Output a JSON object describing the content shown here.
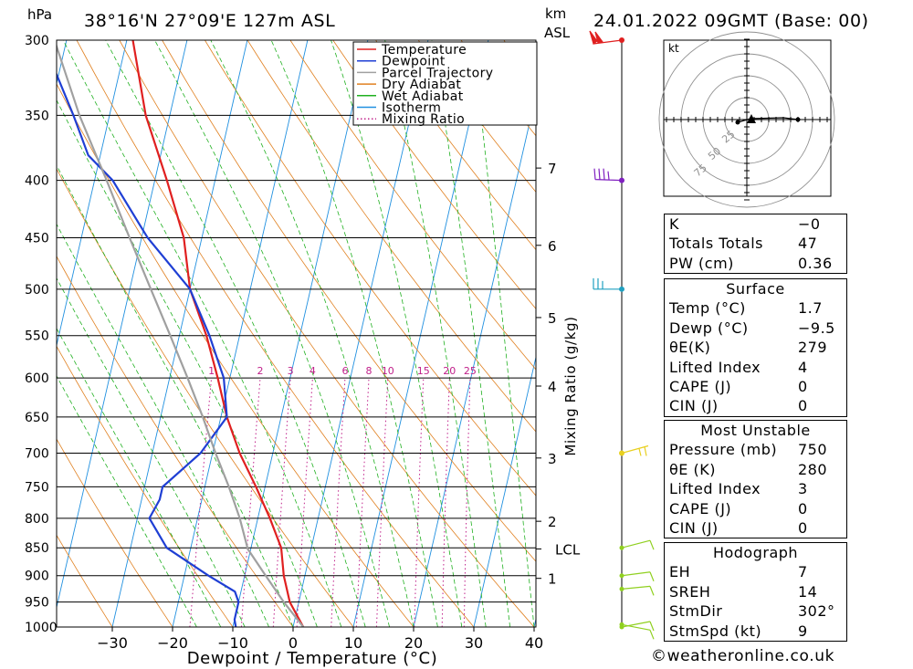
{
  "header": {
    "hpa_label": "hPa",
    "location": "38°16'N 27°09'E 127m ASL",
    "km_label": "km",
    "asl_label": "ASL",
    "datetime": "24.01.2022 09GMT (Base: 00)"
  },
  "chart_data": {
    "type": "line",
    "title": "",
    "xlabel": "Dewpoint / Temperature (°C)",
    "ylabel": "hPa",
    "xlim": [
      -40,
      40
    ],
    "ylim": [
      1000,
      300
    ],
    "x_ticks": [
      -30,
      -20,
      -10,
      0,
      10,
      20,
      30,
      40
    ],
    "x_tick_labels": [
      "−30",
      "−20",
      "−10",
      "0",
      "10",
      "20",
      "30",
      "40"
    ],
    "pressure_ticks": [
      300,
      350,
      400,
      450,
      500,
      550,
      600,
      650,
      700,
      750,
      800,
      850,
      900,
      950,
      1000
    ],
    "pressure_tick_labels": [
      "300",
      "350",
      "400",
      "450",
      "500",
      "550",
      "600",
      "650",
      "700",
      "750",
      "800",
      "850",
      "900",
      "950",
      "1000"
    ],
    "km_ticks": [
      {
        "label": "1",
        "p": 905
      },
      {
        "label": "2",
        "p": 805
      },
      {
        "label": "3",
        "p": 707
      },
      {
        "label": "4",
        "p": 610
      },
      {
        "label": "5",
        "p": 530
      },
      {
        "label": "6",
        "p": 457
      },
      {
        "label": "7",
        "p": 390
      }
    ],
    "lcl": {
      "label": "LCL",
      "p": 852
    },
    "mixing_ratio_axis_label": "Mixing Ratio (g/kg)",
    "mixing_ratio_labels": [
      "1",
      "2",
      "3",
      "4",
      "6",
      "8",
      "10",
      "15",
      "20",
      "25"
    ],
    "mixing_ratio_values": [
      1,
      2,
      3,
      4,
      6,
      8,
      10,
      15,
      20,
      25
    ],
    "legend": {
      "placement": "top-right",
      "entries": [
        {
          "label": "Temperature",
          "color": "#e02020",
          "style": "solid"
        },
        {
          "label": "Dewpoint",
          "color": "#1f3fd4",
          "style": "solid"
        },
        {
          "label": "Parcel Trajectory",
          "color": "#a0a0a0",
          "style": "solid"
        },
        {
          "label": "Dry Adiabat",
          "color": "#e08020",
          "style": "solid"
        },
        {
          "label": "Wet Adiabat",
          "color": "#20b020",
          "style": "solid"
        },
        {
          "label": "Isotherm",
          "color": "#2090e0",
          "style": "solid"
        },
        {
          "label": "Mixing Ratio",
          "color": "#c0208a",
          "style": "dotted"
        }
      ]
    },
    "series": [
      {
        "name": "Temperature",
        "color": "#e02020",
        "points": [
          [
            1000,
            1.7
          ],
          [
            950,
            -1.5
          ],
          [
            900,
            -3.5
          ],
          [
            850,
            -5
          ],
          [
            800,
            -8
          ],
          [
            750,
            -11.5
          ],
          [
            700,
            -15.5
          ],
          [
            650,
            -19
          ],
          [
            600,
            -22
          ],
          [
            550,
            -25.5
          ],
          [
            500,
            -30
          ],
          [
            450,
            -33
          ],
          [
            400,
            -38
          ],
          [
            350,
            -44
          ],
          [
            300,
            -49
          ]
        ]
      },
      {
        "name": "Dewpoint",
        "color": "#1f3fd4",
        "points": [
          [
            1000,
            -9.5
          ],
          [
            985,
            -10
          ],
          [
            950,
            -10
          ],
          [
            930,
            -11
          ],
          [
            900,
            -16
          ],
          [
            850,
            -24
          ],
          [
            800,
            -28
          ],
          [
            770,
            -27
          ],
          [
            750,
            -27
          ],
          [
            700,
            -22
          ],
          [
            650,
            -19
          ],
          [
            600,
            -21
          ],
          [
            550,
            -25
          ],
          [
            500,
            -30
          ],
          [
            450,
            -39
          ],
          [
            400,
            -47
          ],
          [
            380,
            -52
          ],
          [
            350,
            -56
          ],
          [
            300,
            -64
          ]
        ]
      },
      {
        "name": "Parcel Trajectory",
        "color": "#a0a0a0",
        "points": [
          [
            1000,
            1.7
          ],
          [
            950,
            -2.5
          ],
          [
            900,
            -6.5
          ],
          [
            852,
            -10.5
          ],
          [
            800,
            -13
          ],
          [
            750,
            -16
          ],
          [
            700,
            -19.5
          ],
          [
            650,
            -23
          ],
          [
            600,
            -27
          ],
          [
            550,
            -31.5
          ],
          [
            500,
            -36.5
          ],
          [
            450,
            -42
          ],
          [
            400,
            -48
          ],
          [
            350,
            -55
          ],
          [
            300,
            -62
          ]
        ]
      }
    ]
  },
  "wind_barbs": {
    "colors": [
      "#e02020",
      "#8020c0",
      "#20a0c0",
      "#e8d020",
      "#90d020"
    ]
  },
  "hodograph": {
    "units_label": "kt",
    "ring_labels": [
      "25",
      "50",
      "75"
    ]
  },
  "indices": [
    {
      "label": "K",
      "value": "−0"
    },
    {
      "label": "Totals Totals",
      "value": "47"
    },
    {
      "label": "PW (cm)",
      "value": "0.36"
    }
  ],
  "surface": {
    "title": "Surface",
    "rows": [
      {
        "label": "Temp (°C)",
        "value": "1.7"
      },
      {
        "label": "Dewp (°C)",
        "value": "−9.5"
      },
      {
        "label": "θE(K)",
        "value": "279"
      },
      {
        "label": "Lifted Index",
        "value": "4"
      },
      {
        "label": "CAPE (J)",
        "value": "0"
      },
      {
        "label": "CIN (J)",
        "value": "0"
      }
    ]
  },
  "most_unstable": {
    "title": "Most Unstable",
    "rows": [
      {
        "label": "Pressure (mb)",
        "value": "750"
      },
      {
        "label": "θE (K)",
        "value": "280"
      },
      {
        "label": "Lifted Index",
        "value": "3"
      },
      {
        "label": "CAPE (J)",
        "value": "0"
      },
      {
        "label": "CIN (J)",
        "value": "0"
      }
    ]
  },
  "hodograph_table": {
    "title": "Hodograph",
    "rows": [
      {
        "label": "EH",
        "value": "7"
      },
      {
        "label": "SREH",
        "value": "14"
      },
      {
        "label": "StmDir",
        "value": "302°"
      },
      {
        "label": "StmSpd (kt)",
        "value": "9"
      }
    ]
  },
  "credit": "©weatheronline.co.uk"
}
